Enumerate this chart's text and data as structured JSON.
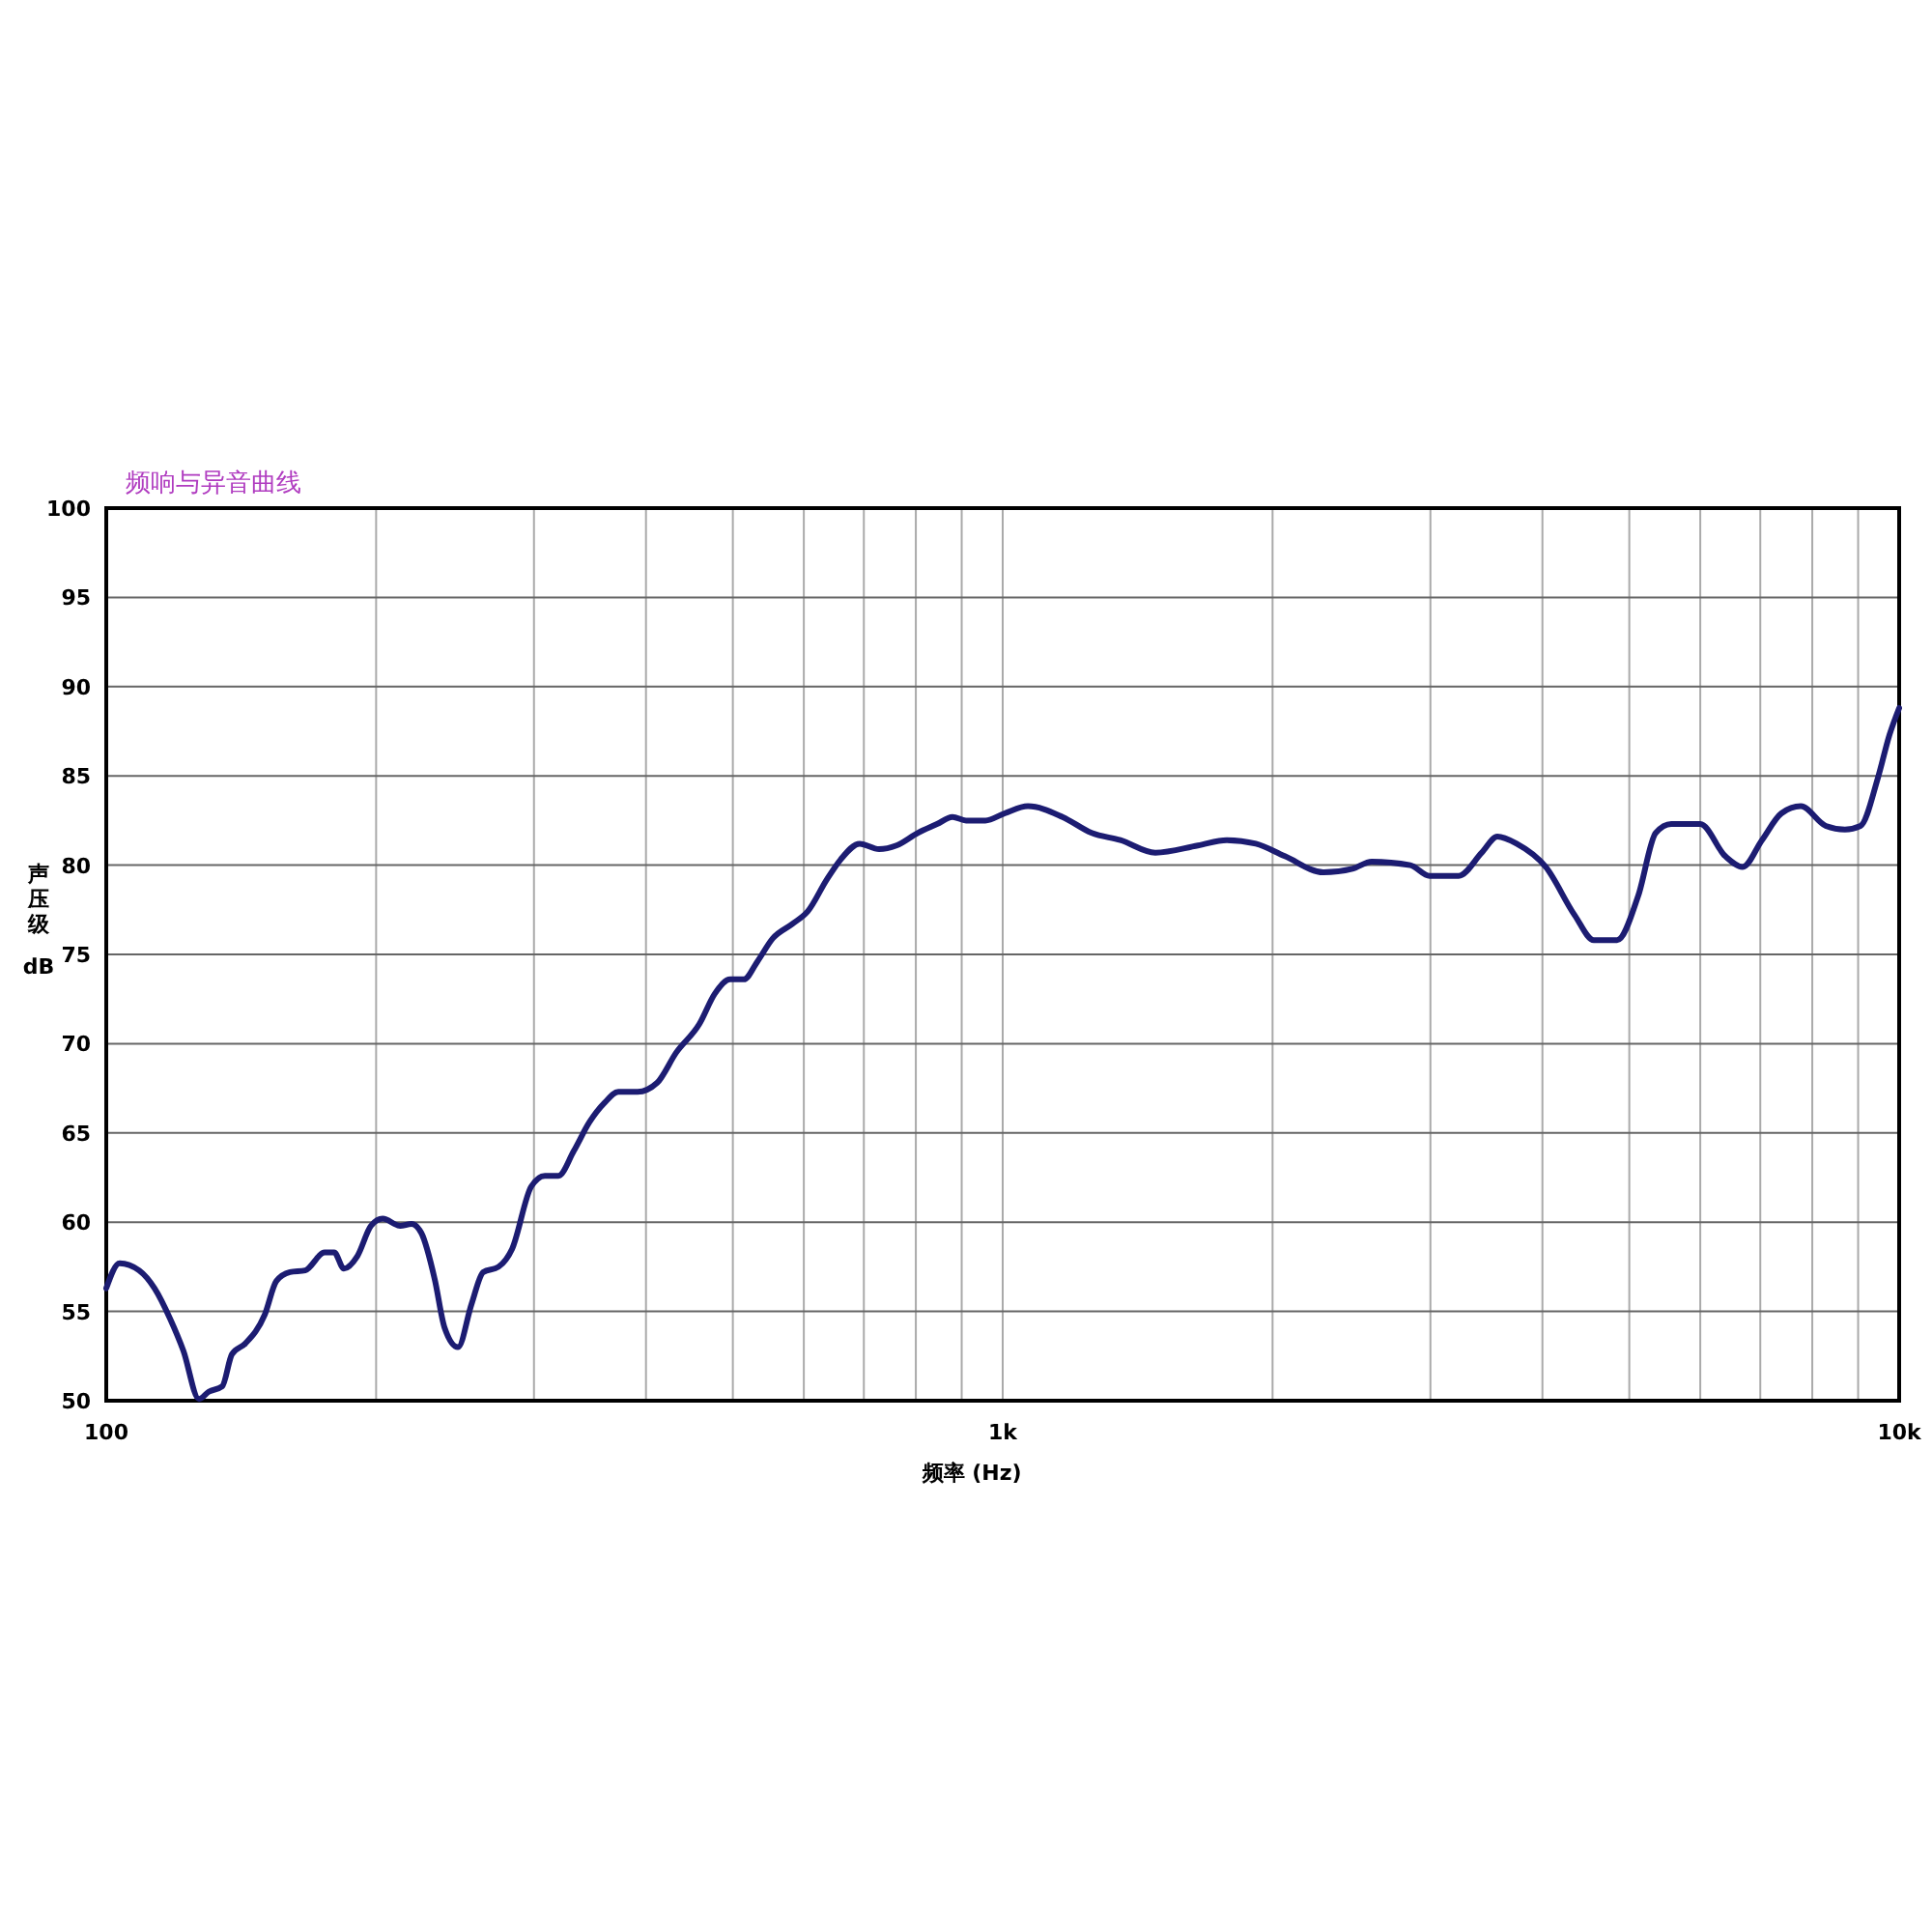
{
  "chart_data": {
    "type": "line",
    "title": "频响与异音曲线",
    "xlabel": "频率 (Hz)",
    "ylabel": "声压级 dB",
    "log": "x",
    "grid": true,
    "marker": "none",
    "line_style": "solid",
    "xlim": [
      100,
      10000
    ],
    "ylim": [
      50,
      100
    ],
    "xticks": [
      {
        "value": 100,
        "label": "100"
      },
      {
        "value": 200,
        "label": null
      },
      {
        "value": 300,
        "label": null
      },
      {
        "value": 400,
        "label": null
      },
      {
        "value": 500,
        "label": null
      },
      {
        "value": 600,
        "label": null
      },
      {
        "value": 700,
        "label": null
      },
      {
        "value": 800,
        "label": null
      },
      {
        "value": 900,
        "label": null
      },
      {
        "value": 1000,
        "label": "1k"
      },
      {
        "value": 2000,
        "label": null
      },
      {
        "value": 3000,
        "label": null
      },
      {
        "value": 4000,
        "label": null
      },
      {
        "value": 5000,
        "label": null
      },
      {
        "value": 6000,
        "label": null
      },
      {
        "value": 7000,
        "label": null
      },
      {
        "value": 8000,
        "label": null
      },
      {
        "value": 9000,
        "label": null
      },
      {
        "value": 10000,
        "label": "10k"
      }
    ],
    "yticks": [
      50,
      55,
      60,
      65,
      70,
      75,
      80,
      85,
      90,
      95,
      100
    ],
    "series": [
      {
        "color": "#1c1c72",
        "x": [
          100,
          103.5,
          108.8,
          113.2,
          117.8,
          121.9,
          126.9,
          130.1,
          134.7,
          138.1,
          142.9,
          150.2,
          154.8,
          160.3,
          166.7,
          175.2,
          179.6,
          184.1,
          190.6,
          197.4,
          203.4,
          212.7,
          219.1,
          224.6,
          232.5,
          238.4,
          246.8,
          255.5,
          263.3,
          273.9,
          283.6,
          297.9,
          308.5,
          319.4,
          332.4,
          345.9,
          359.8,
          372.6,
          391.5,
          411.5,
          432.3,
          458.8,
          477.4,
          496.7,
          514.3,
          532.5,
          554,
          582.2,
          605.8,
          636.6,
          659.1,
          692.6,
          727.8,
          761.1,
          803.8,
          844.7,
          879,
          910.1,
          956.4,
          1005,
          1067,
          1166,
          1257,
          1353,
          1480,
          1651,
          1778,
          1916,
          2064,
          2279,
          2455,
          2580,
          2849,
          2994,
          3226,
          3423,
          3563,
          3744,
          4034,
          4345,
          4565,
          4845,
          5117,
          5351,
          5569,
          5999,
          6398,
          6690,
          7030,
          7389,
          7767,
          8282,
          8700,
          9056,
          9470,
          9755,
          10000
        ],
        "values": [
          56.3,
          57.7,
          57.3,
          56.3,
          54.6,
          52.8,
          50.1,
          50.5,
          50.8,
          52.6,
          53.2,
          54.8,
          56.7,
          57.2,
          57.3,
          58.3,
          58.3,
          57.4,
          58.1,
          59.8,
          60.2,
          59.8,
          59.9,
          59.4,
          56.8,
          54.1,
          53,
          55.4,
          57.2,
          57.5,
          58.5,
          62,
          62.6,
          62.6,
          64,
          65.6,
          66.7,
          67.3,
          67.3,
          67.8,
          69.5,
          71.1,
          72.8,
          73.6,
          73.6,
          74.6,
          75.9,
          76.7,
          77.4,
          79.2,
          80.3,
          81.2,
          80.9,
          81.1,
          81.8,
          82.3,
          82.7,
          82.5,
          82.5,
          82.9,
          83.3,
          82.7,
          81.8,
          81.4,
          80.7,
          81.1,
          81.4,
          81.2,
          80.5,
          79.6,
          79.8,
          80.2,
          80,
          79.4,
          79.4,
          80.7,
          81.6,
          81.2,
          79.9,
          77.2,
          75.8,
          75.8,
          78.3,
          81.8,
          82.3,
          82.3,
          80.5,
          79.9,
          81.4,
          82.9,
          83.3,
          82.2,
          82,
          82.2,
          84.9,
          87.3,
          88.8
        ]
      }
    ]
  }
}
